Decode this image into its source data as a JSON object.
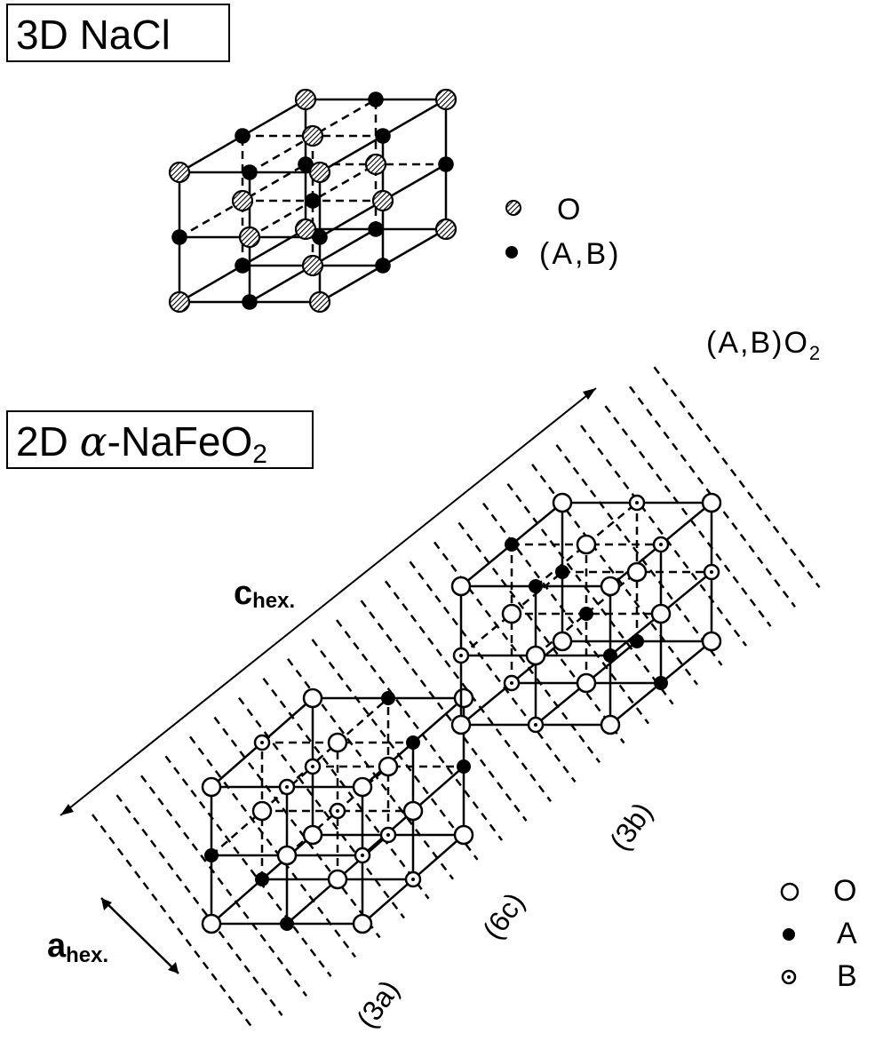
{
  "titles": {
    "nacl": "3D  NaCl",
    "nafeo2_prefix": "2D  ",
    "nafeo2_alpha": "α",
    "nafeo2_formula": "-NaFeO",
    "nafeo2_sub": "2"
  },
  "formula": {
    "main": "(A,B)O",
    "sub": "2"
  },
  "axes": {
    "c_main": "c",
    "c_sub": "hex.",
    "a_main": "a",
    "a_sub": "hex."
  },
  "sites": [
    "(3a)",
    "(6c)",
    "(3b)"
  ],
  "legend_nacl": [
    {
      "symbol": "hatched-circle",
      "label": "O"
    },
    {
      "symbol": "filled-circle",
      "label": "(A,B)"
    }
  ],
  "legend_nafeo2": [
    {
      "symbol": "open-circle",
      "label": "O"
    },
    {
      "symbol": "filled-circle",
      "label": "A"
    },
    {
      "symbol": "dotted-circle",
      "label": "B"
    }
  ]
}
